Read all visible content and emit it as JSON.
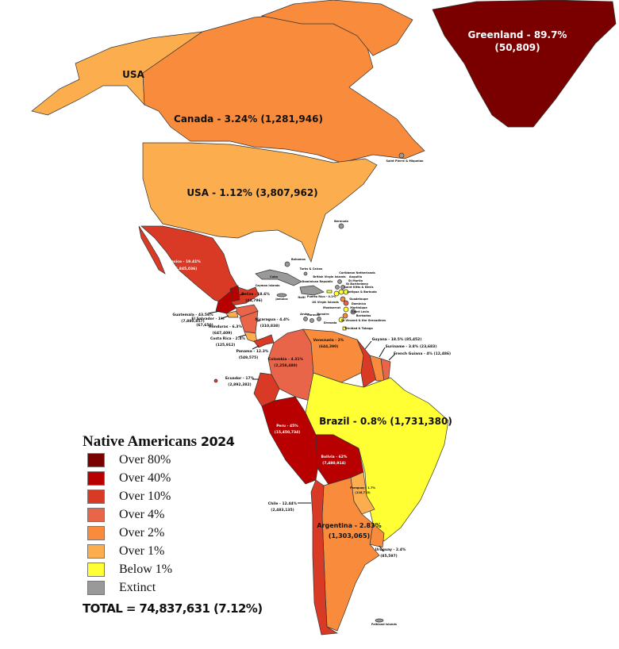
{
  "colors": {
    "over80": "#7a0000",
    "over40": "#b80000",
    "over10": "#d93a25",
    "over4": "#e8654a",
    "over2": "#f98b3c",
    "over1": "#fcae4f",
    "below1": "#ffff33",
    "extinct": "#999999"
  },
  "legend": {
    "title": "Native Americans",
    "year": "2024",
    "items": [
      {
        "label": "Over 80%",
        "color": "#7a0000"
      },
      {
        "label": "Over 40%",
        "color": "#b80000"
      },
      {
        "label": "Over 10%",
        "color": "#d93a25"
      },
      {
        "label": "Over 4%",
        "color": "#e8654a"
      },
      {
        "label": "Over 2%",
        "color": "#f98b3c"
      },
      {
        "label": "Over 1%",
        "color": "#fcae4f"
      },
      {
        "label": "Below 1%",
        "color": "#ffff33"
      },
      {
        "label": "Extinct",
        "color": "#999999"
      }
    ],
    "total": "TOTAL = 74,837,631 (7.12%)"
  },
  "countries": {
    "greenland": {
      "name": "Greenland - 89.7%",
      "value": "(50,809)"
    },
    "canada": {
      "name": "Canada - 3.24% (1,281,946)"
    },
    "alaska": {
      "name": "USA"
    },
    "usa": {
      "name": "USA - 1.12% (3,807,962)"
    },
    "mexico": {
      "name": "Mexico - 19.41%",
      "value": "(25,845,036)"
    },
    "belize": {
      "name": "Belize - 18.6%",
      "value": "(44,796)"
    },
    "guatemala": {
      "name": "Guatemala - 43.56%",
      "value": "(7,880,857)"
    },
    "el_salvador": {
      "name": "El Salvador - 1%",
      "value": "(67,650)"
    },
    "honduras": {
      "name": "Honduras - 6.3%",
      "value": "(647,409)"
    },
    "nicaragua": {
      "name": "Nicaragua - 4.4%",
      "value": "(310,838)"
    },
    "costa_rica": {
      "name": "Costa Rica - 2.4%",
      "value": "(125,912)"
    },
    "panama": {
      "name": "Panama - 12.3%",
      "value": "(549,575)"
    },
    "colombia": {
      "name": "Colombia - 4.31%",
      "value": "(2,258,480)"
    },
    "venezuela": {
      "name": "Venezuela - 2%",
      "value": "(644,390)"
    },
    "guyana": {
      "name": "Guyana - 18.5% (85,452)"
    },
    "suriname": {
      "name": "Suriname - 3.8% (23,683)"
    },
    "french_guiana": {
      "name": "French Guiana - 4% (12,486)"
    },
    "ecuador": {
      "name": "Ecuador - 17%",
      "value": "(2,892,382)"
    },
    "peru": {
      "name": "Peru - 45%",
      "value": "(15,450,734)"
    },
    "brazil": {
      "name": "Brazil - 0.8% (1,731,380)"
    },
    "bolivia": {
      "name": "Bolivia - 62%",
      "value": "(7,480,914)"
    },
    "paraguay": {
      "name": "Paraguay - 1.7%",
      "value": "(116,715)"
    },
    "chile": {
      "name": "Chile - 12.44%",
      "value": "(2,483,135)"
    },
    "argentina": {
      "name": "Argentina - 2.83%",
      "value": "(1,303,065)"
    },
    "uruguay": {
      "name": "Uruguay - 2.4%",
      "value": "(85,597)"
    }
  },
  "small_labels": {
    "saint_pierre": "Saint Pierre & Miquelon",
    "bermuda": "Bermuda",
    "bahamas": "Bahamas",
    "turks": "Turks & Caicos",
    "cuba": "Cuba",
    "cayman": "Cayman Islands",
    "jamaica": "Jamaica",
    "haiti": "Haiti",
    "dominican": "Dominican Republic",
    "puerto_rico": "Puerto Rico - 0.2%",
    "bvi": "British Virgin Islands",
    "usvi": "US Virgin Islands",
    "caribbean_nl": "Caribbean Netherlands",
    "anguilla": "Anguilla",
    "st_martin": "St Martin",
    "st_barth": "St Barthelemy",
    "kitts": "Saint Kitts & Nevis",
    "antigua": "Antigua & Barbuda",
    "montserrat": "Montserrat",
    "guadeloupe": "Guadeloupe",
    "dominica": "Dominica",
    "martinique": "Martinique",
    "saint_lucia": "Saint Lucia",
    "barbados": "Barbados",
    "st_vincent": "St Vincent & the Grenadines",
    "grenada": "Grenada",
    "trinidad": "Trinidad & Tobago",
    "aruba": "Aruba",
    "curacao": "Curacao",
    "bonaire": "Bonaire",
    "falklands": "Falkland Islands"
  }
}
